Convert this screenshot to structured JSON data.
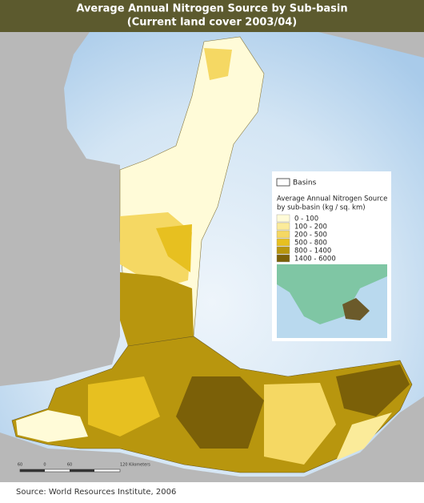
{
  "title": "Average Annual Nitrogen Source by Sub-basin",
  "subtitle": "(Current land cover 2003/04)",
  "legend": {
    "basins_label": "Basins",
    "title_lines": [
      "Average Annual Nitrogen Source",
      "by sub-basin (kg / sq. km)"
    ],
    "items": [
      {
        "label": "0 - 100",
        "color": "#fffbd8"
      },
      {
        "label": "100 - 200",
        "color": "#fbeb9a"
      },
      {
        "label": "200 - 500",
        "color": "#f5d863"
      },
      {
        "label": "500 - 800",
        "color": "#e7c020"
      },
      {
        "label": "800 - 1400",
        "color": "#b8960e"
      },
      {
        "label": "1400 - 6000",
        "color": "#7b6008"
      }
    ]
  },
  "scale_labels": [
    "60",
    "0",
    "60",
    "120 Kilometers"
  ],
  "source": "Source: World Resources Institute, 2006"
}
